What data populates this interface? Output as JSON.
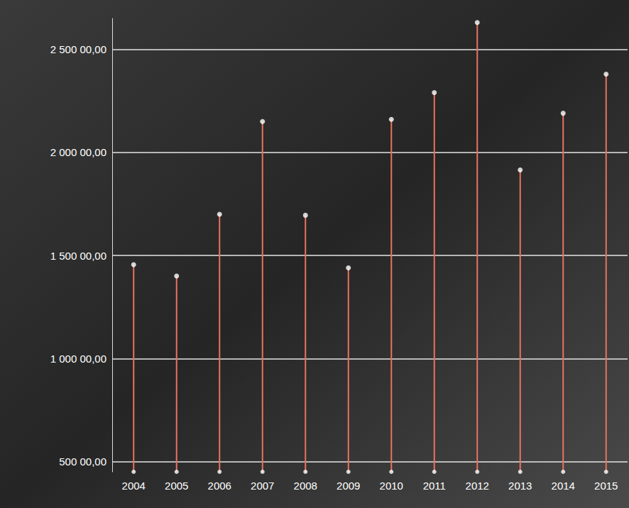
{
  "chart_data": {
    "type": "bar",
    "marker": "circle",
    "categories": [
      "2004",
      "2005",
      "2006",
      "2007",
      "2008",
      "2009",
      "2010",
      "2011",
      "2012",
      "2013",
      "2014",
      "2015"
    ],
    "values": [
      145500,
      140000,
      170000,
      215000,
      169500,
      144000,
      216000,
      229000,
      263000,
      191500,
      219000,
      238000
    ],
    "color": "#e8735f",
    "ylim": [
      45000,
      265000
    ],
    "yticks": [
      {
        "value": 50000,
        "label": "500 00,00"
      },
      {
        "value": 100000,
        "label": "1 000 00,00"
      },
      {
        "value": 150000,
        "label": "1 500 00,00"
      },
      {
        "value": 200000,
        "label": "2 000 00,00"
      },
      {
        "value": 250000,
        "label": "2 500 00,00"
      }
    ],
    "grid": true
  }
}
